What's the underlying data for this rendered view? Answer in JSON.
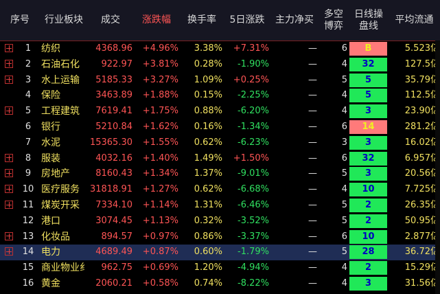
{
  "headers": {
    "idx": "序号",
    "name": "行业板块",
    "vol": "成交",
    "chg": "涨跌幅",
    "turn": "换手率",
    "five": "5日涨跌",
    "main": "主力净买",
    "ls1": "多空",
    "ls2": "博弈",
    "daily1": "日线操",
    "daily2": "盘线",
    "flow": "平均流通"
  },
  "rows": [
    {
      "has_plus": true,
      "idx": "1",
      "name": "纺织",
      "vol": "4368.96",
      "chg": "+4.96%",
      "turn": "3.38%",
      "five": "+7.31%",
      "five_dir": "up",
      "main": "—",
      "ls": "6",
      "daily": "B",
      "daily_color": "red",
      "flow": "5.523亿",
      "selected": false
    },
    {
      "has_plus": true,
      "idx": "2",
      "name": "石油石化",
      "vol": "922.97",
      "chg": "+3.81%",
      "turn": "0.28%",
      "five": "-1.90%",
      "five_dir": "down",
      "main": "—",
      "ls": "4",
      "daily": "32",
      "daily_color": "green",
      "flow": "127.5亿",
      "selected": false
    },
    {
      "has_plus": true,
      "idx": "3",
      "name": "水上运输",
      "vol": "5185.33",
      "chg": "+3.27%",
      "turn": "1.09%",
      "five": "+0.25%",
      "five_dir": "up",
      "main": "—",
      "ls": "5",
      "daily": "5",
      "daily_color": "green",
      "flow": "35.79亿",
      "selected": false
    },
    {
      "has_plus": false,
      "idx": "4",
      "name": "保险",
      "vol": "3463.89",
      "chg": "+1.88%",
      "turn": "0.15%",
      "five": "-2.25%",
      "five_dir": "down",
      "main": "—",
      "ls": "4",
      "daily": "5",
      "daily_color": "green",
      "flow": "112.5亿",
      "selected": false
    },
    {
      "has_plus": true,
      "idx": "5",
      "name": "工程建筑",
      "vol": "7619.41",
      "chg": "+1.75%",
      "turn": "0.88%",
      "five": "-6.20%",
      "five_dir": "down",
      "main": "—",
      "ls": "4",
      "daily": "3",
      "daily_color": "green",
      "flow": "23.90亿",
      "selected": false
    },
    {
      "has_plus": false,
      "idx": "6",
      "name": "银行",
      "vol": "5210.84",
      "chg": "+1.62%",
      "turn": "0.16%",
      "five": "-1.34%",
      "five_dir": "down",
      "main": "—",
      "ls": "6",
      "daily": "14",
      "daily_color": "red",
      "flow": "281.2亿",
      "selected": false
    },
    {
      "has_plus": false,
      "idx": "7",
      "name": "水泥",
      "vol": "15365.30",
      "chg": "+1.55%",
      "turn": "0.62%",
      "five": "-6.23%",
      "five_dir": "down",
      "main": "—",
      "ls": "3",
      "daily": "3",
      "daily_color": "green",
      "flow": "16.02亿",
      "selected": false
    },
    {
      "has_plus": true,
      "idx": "8",
      "name": "服装",
      "vol": "4032.16",
      "chg": "+1.40%",
      "turn": "1.49%",
      "five": "+1.50%",
      "five_dir": "up",
      "main": "—",
      "ls": "6",
      "daily": "32",
      "daily_color": "green",
      "flow": "6.957亿",
      "selected": false
    },
    {
      "has_plus": true,
      "idx": "9",
      "name": "房地产",
      "vol": "8160.43",
      "chg": "+1.34%",
      "turn": "1.37%",
      "five": "-9.01%",
      "five_dir": "down",
      "main": "—",
      "ls": "5",
      "daily": "3",
      "daily_color": "green",
      "flow": "20.56亿",
      "selected": false
    },
    {
      "has_plus": true,
      "idx": "10",
      "name": "医疗服务",
      "vol": "31818.91",
      "chg": "+1.27%",
      "turn": "0.62%",
      "five": "-6.68%",
      "five_dir": "down",
      "main": "—",
      "ls": "4",
      "daily": "10",
      "daily_color": "green",
      "flow": "7.725亿",
      "selected": false
    },
    {
      "has_plus": true,
      "idx": "11",
      "name": "煤炭开采",
      "vol": "7334.10",
      "chg": "+1.14%",
      "turn": "1.31%",
      "five": "-6.46%",
      "five_dir": "down",
      "main": "—",
      "ls": "5",
      "daily": "2",
      "daily_color": "green",
      "flow": "26.35亿",
      "selected": false
    },
    {
      "has_plus": false,
      "idx": "12",
      "name": "港口",
      "vol": "3074.45",
      "chg": "+1.13%",
      "turn": "0.32%",
      "five": "-3.52%",
      "five_dir": "down",
      "main": "—",
      "ls": "5",
      "daily": "2",
      "daily_color": "green",
      "flow": "50.95亿",
      "selected": false
    },
    {
      "has_plus": true,
      "idx": "13",
      "name": "化妆品",
      "vol": "894.57",
      "chg": "+0.97%",
      "turn": "0.86%",
      "five": "-3.37%",
      "five_dir": "down",
      "main": "—",
      "ls": "6",
      "daily": "10",
      "daily_color": "green",
      "flow": "2.877亿",
      "selected": false
    },
    {
      "has_plus": true,
      "idx": "14",
      "name": "电力",
      "vol": "4689.49",
      "chg": "+0.87%",
      "turn": "0.60%",
      "five": "-1.79%",
      "five_dir": "down",
      "main": "—",
      "ls": "5",
      "daily": "28",
      "daily_color": "green",
      "flow": "36.72亿",
      "selected": true
    },
    {
      "has_plus": false,
      "idx": "15",
      "name": "商业物业纟",
      "vol": "962.75",
      "chg": "+0.69%",
      "turn": "1.20%",
      "five": "-4.94%",
      "five_dir": "down",
      "main": "—",
      "ls": "4",
      "daily": "2",
      "daily_color": "green",
      "flow": "15.29亿",
      "selected": false
    },
    {
      "has_plus": false,
      "idx": "16",
      "name": "黄金",
      "vol": "2060.21",
      "chg": "+0.58%",
      "turn": "0.74%",
      "five": "-8.22%",
      "five_dir": "down",
      "main": "—",
      "ls": "4",
      "daily": "3",
      "daily_color": "green",
      "flow": "31.56亿",
      "selected": false
    }
  ]
}
